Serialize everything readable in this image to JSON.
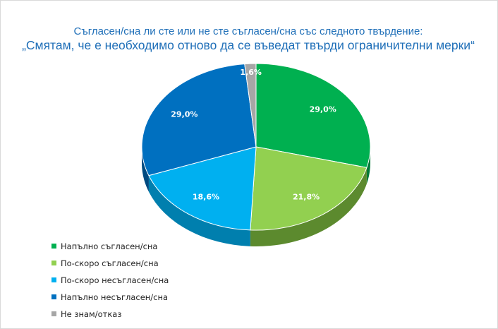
{
  "chart_data": {
    "type": "pie",
    "title": "Съгласен/сна ли сте или не сте съгласен/сна със следното твърдение:",
    "subtitle": "„Смятам, че е необходимо отново да се въведат твърди ограничителни мерки“",
    "slices": [
      {
        "name": "Напълно съгласен/сна",
        "value": 29.0,
        "label": "29,0%",
        "color": "#00b050",
        "side_color": "#007a37"
      },
      {
        "name": "По-скоро съгласен/сна",
        "value": 21.8,
        "label": "21,8%",
        "color": "#92d050",
        "side_color": "#5c8a2e"
      },
      {
        "name": "По-скоро несъгласен/сна",
        "value": 18.6,
        "label": "18,6%",
        "color": "#00b0f0",
        "side_color": "#007fae"
      },
      {
        "name": "Напълно несъгласен/сна",
        "value": 29.0,
        "label": "29,0%",
        "color": "#0070c0",
        "side_color": "#004a80"
      },
      {
        "name": "Не знам/отказ",
        "value": 1.6,
        "label": "1,6%",
        "color": "#a6a6a6",
        "side_color": "#707070"
      }
    ],
    "start_angle": "12 o'clock",
    "direction": "clockwise",
    "style": "3d-tilted",
    "legend_position": "bottom-left"
  }
}
